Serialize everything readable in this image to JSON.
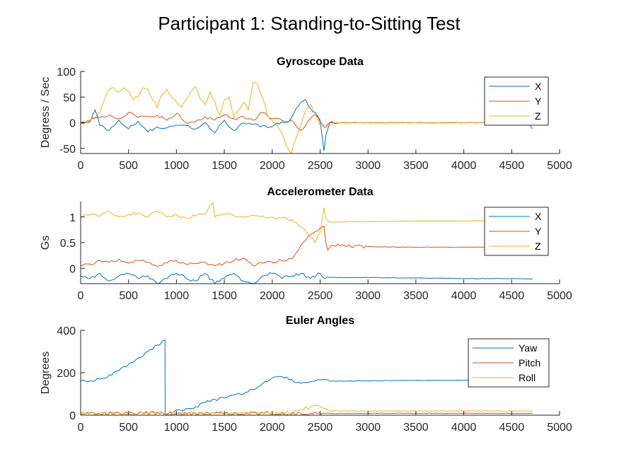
{
  "title": "Participant 1: Standing-to-Sitting Test",
  "colors": {
    "c1": "#0072BD",
    "c2": "#D95319",
    "c3": "#EDB120"
  },
  "chart_data": [
    {
      "type": "line",
      "title": "Gyroscope Data",
      "xlabel": "",
      "ylabel": "Degress / Sec",
      "xlim": [
        0,
        5000
      ],
      "ylim": [
        -60,
        100
      ],
      "xticks": [
        0,
        500,
        1000,
        1500,
        2000,
        2500,
        3000,
        3500,
        4000,
        4500,
        5000
      ],
      "yticks": [
        -50,
        0,
        50,
        100
      ],
      "legend_position": "top-right",
      "series": [
        {
          "name": "X",
          "color": "#0072BD",
          "x": [
            0,
            100,
            150,
            200,
            300,
            400,
            500,
            600,
            700,
            800,
            900,
            1000,
            1100,
            1200,
            1300,
            1400,
            1500,
            1600,
            1700,
            1800,
            1900,
            2000,
            2100,
            2150,
            2200,
            2250,
            2300,
            2350,
            2400,
            2450,
            2500,
            2540,
            2560,
            2600,
            2700,
            3000,
            3500,
            4000,
            4500,
            4680,
            4700,
            4720
          ],
          "y": [
            0,
            2,
            25,
            -5,
            -15,
            5,
            -12,
            3,
            -18,
            -8,
            -10,
            -5,
            -5,
            -12,
            0,
            -20,
            5,
            -15,
            0,
            -3,
            -6,
            -8,
            2,
            0,
            10,
            28,
            40,
            45,
            28,
            20,
            5,
            -55,
            -25,
            0,
            0,
            0,
            0,
            0,
            0,
            0,
            -8,
            -12
          ]
        },
        {
          "name": "Y",
          "color": "#D95319",
          "x": [
            0,
            100,
            200,
            300,
            400,
            500,
            600,
            700,
            800,
            900,
            1000,
            1100,
            1200,
            1300,
            1400,
            1500,
            1600,
            1700,
            1800,
            1900,
            2000,
            2100,
            2200,
            2300,
            2350,
            2400,
            2450,
            2500,
            2550,
            2600,
            3000,
            3500,
            4000,
            4500,
            4720
          ],
          "y": [
            0,
            5,
            10,
            15,
            8,
            20,
            10,
            12,
            15,
            5,
            18,
            0,
            2,
            12,
            5,
            15,
            8,
            12,
            5,
            20,
            8,
            5,
            5,
            -15,
            -5,
            8,
            15,
            2,
            -10,
            0,
            0,
            0,
            0,
            0,
            0
          ]
        },
        {
          "name": "Z",
          "color": "#EDB120",
          "x": [
            0,
            50,
            100,
            150,
            200,
            250,
            300,
            350,
            400,
            450,
            500,
            550,
            600,
            650,
            700,
            750,
            800,
            850,
            900,
            950,
            1000,
            1050,
            1100,
            1150,
            1200,
            1250,
            1300,
            1350,
            1400,
            1450,
            1500,
            1550,
            1600,
            1650,
            1700,
            1750,
            1800,
            1850,
            1900,
            1950,
            2000,
            2050,
            2100,
            2150,
            2200,
            2250,
            2300,
            2350,
            2400,
            2450,
            2500,
            2550,
            2600,
            2650,
            3000,
            3500,
            4000,
            4500,
            4720
          ],
          "y": [
            0,
            0,
            5,
            10,
            20,
            45,
            65,
            68,
            60,
            68,
            62,
            45,
            50,
            68,
            65,
            45,
            30,
            55,
            65,
            50,
            40,
            30,
            45,
            60,
            70,
            45,
            35,
            60,
            42,
            15,
            45,
            50,
            10,
            25,
            40,
            25,
            78,
            75,
            48,
            15,
            5,
            -5,
            -20,
            -45,
            -60,
            -30,
            -5,
            25,
            35,
            15,
            -5,
            -10,
            -5,
            0,
            0,
            0,
            0,
            0,
            0
          ]
        }
      ]
    },
    {
      "type": "line",
      "title": "Accelerometer Data",
      "xlabel": "",
      "ylabel": "Gs",
      "xlim": [
        0,
        5000
      ],
      "ylim": [
        -0.3,
        1.3
      ],
      "xticks": [
        0,
        500,
        1000,
        1500,
        2000,
        2500,
        3000,
        3500,
        4000,
        4500,
        5000
      ],
      "yticks": [
        0,
        0.5,
        1
      ],
      "legend_position": "top-right",
      "series": [
        {
          "name": "X",
          "color": "#0072BD",
          "x": [
            0,
            100,
            200,
            300,
            400,
            500,
            600,
            700,
            800,
            900,
            1000,
            1100,
            1200,
            1300,
            1400,
            1500,
            1600,
            1700,
            1800,
            1900,
            2000,
            2100,
            2200,
            2300,
            2400,
            2500,
            2550,
            2600,
            3000,
            3500,
            4000,
            4500,
            4720
          ],
          "y": [
            -0.15,
            -0.2,
            -0.1,
            -0.25,
            -0.15,
            -0.1,
            -0.2,
            -0.15,
            -0.3,
            -0.2,
            -0.1,
            -0.2,
            -0.25,
            -0.1,
            -0.3,
            -0.2,
            -0.1,
            -0.25,
            -0.3,
            -0.15,
            -0.1,
            -0.2,
            -0.15,
            -0.1,
            -0.2,
            -0.1,
            -0.2,
            -0.18,
            -0.18,
            -0.19,
            -0.2,
            -0.2,
            -0.21
          ]
        },
        {
          "name": "Y",
          "color": "#D95319",
          "x": [
            0,
            100,
            200,
            300,
            400,
            500,
            600,
            700,
            800,
            900,
            1000,
            1100,
            1200,
            1300,
            1400,
            1500,
            1600,
            1700,
            1800,
            1900,
            2000,
            2100,
            2150,
            2200,
            2250,
            2300,
            2350,
            2400,
            2450,
            2500,
            2540,
            2560,
            2580,
            2620,
            3000,
            3500,
            4000,
            4500,
            4720
          ],
          "y": [
            0.05,
            0.08,
            0.15,
            0.12,
            0.18,
            0.1,
            0.15,
            0.12,
            0.03,
            0.1,
            0.15,
            0.08,
            0.1,
            0.12,
            0.05,
            0.1,
            0.15,
            0.2,
            0.05,
            0.1,
            0.12,
            0.15,
            0.15,
            0.18,
            0.3,
            0.45,
            0.55,
            0.65,
            0.72,
            0.78,
            0.82,
            0.5,
            0.35,
            0.45,
            0.42,
            0.41,
            0.41,
            0.42,
            0.42
          ]
        },
        {
          "name": "Z",
          "color": "#EDB120",
          "x": [
            0,
            100,
            200,
            300,
            400,
            500,
            600,
            700,
            800,
            900,
            1000,
            1100,
            1200,
            1300,
            1380,
            1400,
            1500,
            1600,
            1700,
            1800,
            1900,
            2000,
            2100,
            2200,
            2250,
            2300,
            2350,
            2400,
            2450,
            2500,
            2540,
            2560,
            2600,
            3000,
            3500,
            4000,
            4500,
            4720
          ],
          "y": [
            1.0,
            1.05,
            1.02,
            1.1,
            1.0,
            1.05,
            1.08,
            1.0,
            1.12,
            1.0,
            1.05,
            0.98,
            1.02,
            1.05,
            1.28,
            1.0,
            1.05,
            1.02,
            1.0,
            1.03,
            1.02,
            1.0,
            0.98,
            0.95,
            0.9,
            0.8,
            0.72,
            0.6,
            0.5,
            0.7,
            1.18,
            0.95,
            0.9,
            0.91,
            0.92,
            0.92,
            0.93,
            0.93
          ]
        }
      ]
    },
    {
      "type": "line",
      "title": "Euler Angles",
      "xlabel": "",
      "ylabel": "Degrees",
      "xlim": [
        0,
        5000
      ],
      "ylim": [
        0,
        400
      ],
      "xticks": [
        0,
        500,
        1000,
        1500,
        2000,
        2500,
        3000,
        3500,
        4000,
        4500,
        5000
      ],
      "yticks": [
        0,
        200,
        400
      ],
      "legend_position": "top-right",
      "series": [
        {
          "name": "Yaw",
          "color": "#0072BD",
          "x": [
            0,
            100,
            200,
            250,
            300,
            400,
            500,
            600,
            700,
            800,
            880,
            882,
            900,
            1000,
            1100,
            1150,
            1200,
            1300,
            1400,
            1500,
            1550,
            1600,
            1700,
            1750,
            1800,
            1900,
            2000,
            2050,
            2100,
            2150,
            2200,
            2300,
            2400,
            2500,
            2600,
            3000,
            3500,
            4000,
            4500,
            4720
          ],
          "y": [
            160,
            162,
            170,
            175,
            190,
            210,
            240,
            270,
            300,
            330,
            355,
            0,
            2,
            25,
            30,
            32,
            40,
            60,
            75,
            80,
            90,
            95,
            100,
            110,
            120,
            150,
            175,
            180,
            182,
            180,
            168,
            150,
            158,
            165,
            160,
            162,
            164,
            165,
            166,
            167
          ]
        },
        {
          "name": "Pitch",
          "color": "#D95319",
          "x": [
            0,
            200,
            400,
            600,
            800,
            900,
            1000,
            1200,
            1400,
            1600,
            1800,
            2000,
            2200,
            2400,
            2600,
            3000,
            3500,
            4000,
            4500,
            4720
          ],
          "y": [
            5,
            8,
            10,
            6,
            12,
            8,
            5,
            7,
            10,
            6,
            12,
            8,
            5,
            10,
            8,
            9,
            9,
            9,
            9,
            9
          ]
        },
        {
          "name": "Roll",
          "color": "#EDB120",
          "x": [
            0,
            200,
            400,
            600,
            800,
            1000,
            1200,
            1400,
            1600,
            1800,
            2000,
            2200,
            2300,
            2400,
            2450,
            2500,
            2550,
            2600,
            3000,
            3500,
            4000,
            4500,
            4720
          ],
          "y": [
            8,
            10,
            8,
            10,
            15,
            8,
            10,
            8,
            12,
            15,
            10,
            10,
            25,
            40,
            45,
            42,
            30,
            20,
            20,
            20,
            20,
            20,
            20
          ]
        }
      ]
    }
  ]
}
